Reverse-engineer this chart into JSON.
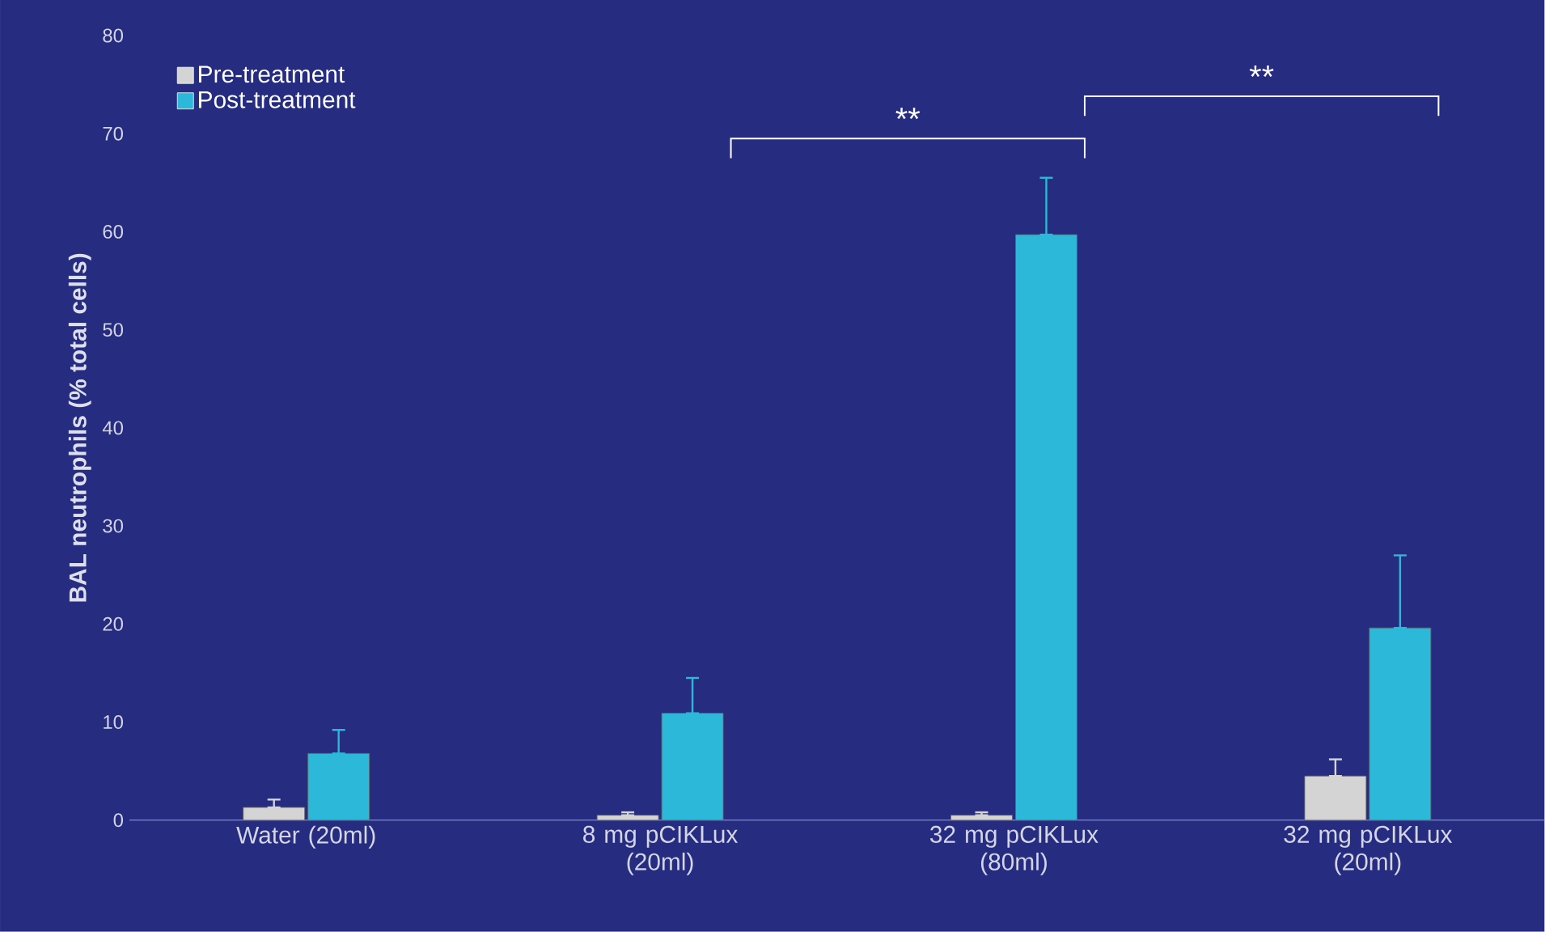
{
  "chart_data": {
    "type": "bar",
    "ylabel": "BAL neutrophils (% total cells)",
    "categories": [
      "Water (20ml)",
      "8 mg pCIKLux (20ml)",
      "32 mg pCIKLux (80ml)",
      "32 mg pCIKLux (20ml)"
    ],
    "series": [
      {
        "name": "Pre-treatment",
        "color": "#d4d4d4",
        "values": [
          1.3,
          0.5,
          0.5,
          4.5
        ],
        "errors": [
          [
            1.3,
            2.1
          ],
          [
            0.5,
            0.8
          ],
          [
            0.5,
            0.8
          ],
          [
            4.5,
            6.2
          ]
        ]
      },
      {
        "name": "Post-treatment",
        "color": "#2cb8d8",
        "values": [
          6.8,
          10.9,
          59.7,
          19.6
        ],
        "errors": [
          [
            6.8,
            9.2
          ],
          [
            10.9,
            14.5
          ],
          [
            59.7,
            65.5
          ],
          [
            19.6,
            27.0
          ]
        ]
      }
    ],
    "ylim": [
      0,
      80
    ],
    "yticks": [
      0,
      10,
      20,
      30,
      40,
      50,
      60,
      70,
      80
    ],
    "legend": "top left",
    "annotations": [
      "**",
      "**"
    ]
  }
}
